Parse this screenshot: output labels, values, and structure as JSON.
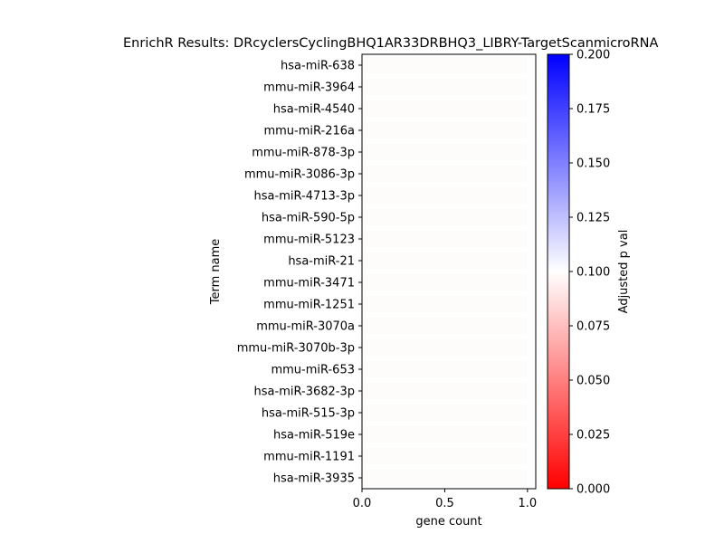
{
  "chart_data": {
    "type": "bar",
    "orientation": "horizontal",
    "title": "EnrichR Results: DRcyclersCyclingBHQ1AR33DRBHQ3_LIBRY-TargetScanmicroRNA",
    "xlabel": "gene count",
    "ylabel": "Term name",
    "xlim": [
      0,
      1.05
    ],
    "xticks": [
      "0.0",
      "0.5",
      "1.0"
    ],
    "categories": [
      "hsa-miR-638",
      "mmu-miR-3964",
      "hsa-miR-4540",
      "mmu-miR-216a",
      "mmu-miR-878-3p",
      "mmu-miR-3086-3p",
      "hsa-miR-4713-3p",
      "hsa-miR-590-5p",
      "mmu-miR-5123",
      "hsa-miR-21",
      "mmu-miR-3471",
      "mmu-miR-1251",
      "mmu-miR-3070a",
      "mmu-miR-3070b-3p",
      "mmu-miR-653",
      "hsa-miR-3682-3p",
      "hsa-miR-515-3p",
      "hsa-miR-519e",
      "mmu-miR-1191",
      "hsa-miR-3935"
    ],
    "values": [
      1,
      1,
      1,
      1,
      1,
      1,
      1,
      1,
      1,
      1,
      1,
      1,
      1,
      1,
      1,
      1,
      1,
      1,
      1,
      1
    ],
    "adjusted_p_val": [
      0.1,
      0.1,
      0.1,
      0.1,
      0.1,
      0.1,
      0.1,
      0.1,
      0.1,
      0.1,
      0.1,
      0.1,
      0.1,
      0.1,
      0.1,
      0.1,
      0.1,
      0.1,
      0.1,
      0.1
    ],
    "bar_color": "#fdfcfb",
    "colorbar": {
      "label": "Adjusted p val",
      "range": [
        0,
        0.2
      ],
      "ticks": [
        "0.000",
        "0.025",
        "0.050",
        "0.075",
        "0.100",
        "0.125",
        "0.150",
        "0.175",
        "0.200"
      ],
      "colormap": [
        "#ff0000",
        "#ffffff",
        "#0000ff"
      ]
    },
    "grid": false,
    "legend": "none"
  }
}
